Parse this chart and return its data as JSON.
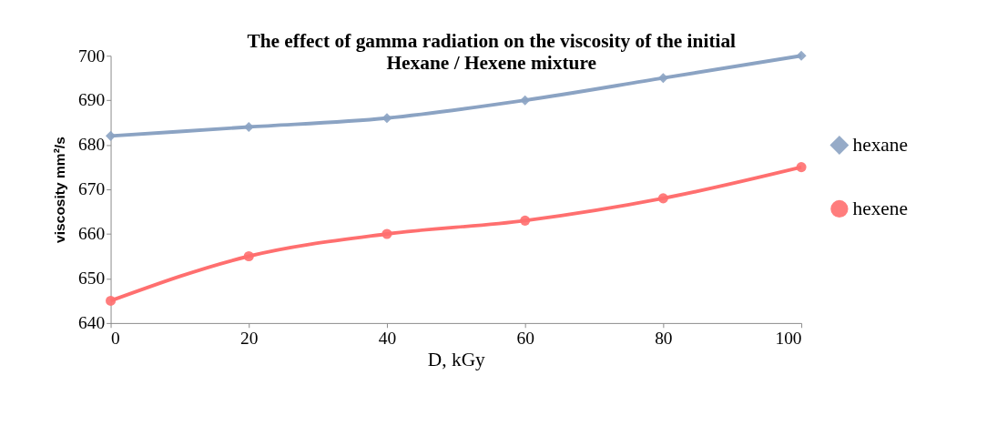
{
  "chart_data": {
    "type": "line",
    "title": "The effect of gamma radiation on the viscosity of the initial\nHexane / Hexene mixture",
    "xlabel": "D, kGy",
    "ylabel": "viscosity mm²/s",
    "x": [
      0,
      20,
      40,
      60,
      80,
      100
    ],
    "series": [
      {
        "name": "hexane",
        "color": "#8ba3c3",
        "marker": "diamond",
        "values": [
          682,
          684,
          686,
          690,
          695,
          700
        ]
      },
      {
        "name": "hexene",
        "color": "#ff6f6f",
        "marker": "circle",
        "values": [
          645,
          655,
          660,
          663,
          668,
          675
        ]
      }
    ],
    "xlim": [
      0,
      100
    ],
    "xticks": [
      0,
      20,
      40,
      60,
      80,
      100
    ],
    "ylim": [
      640,
      700
    ],
    "yticks": [
      640,
      650,
      660,
      670,
      680,
      690,
      700
    ],
    "grid": false,
    "legend": "right",
    "line_style": "solid"
  }
}
